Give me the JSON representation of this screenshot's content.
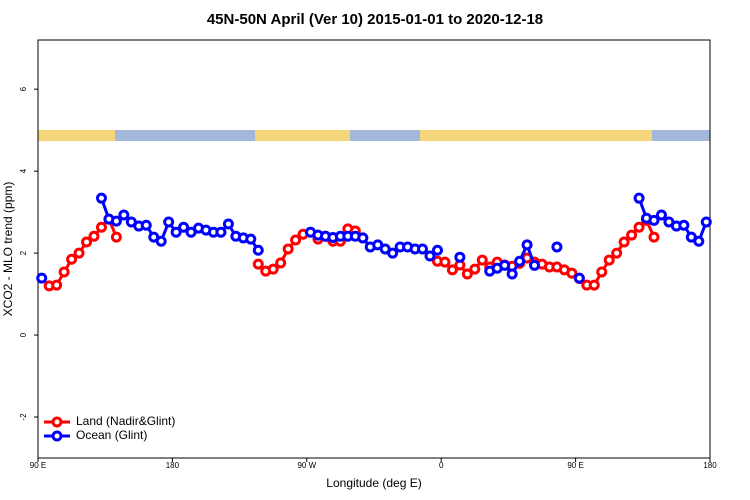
{
  "chart_data": {
    "type": "line",
    "title": "45N-50N April (Ver 10)   2015-01-01 to 2020-12-18",
    "x_label": "Longitude (deg E)",
    "y_label": "XCO2 - MLO trend (ppm)",
    "xlim": [
      90,
      540
    ],
    "xticks": [
      {
        "value": 90,
        "label": "90 E"
      },
      180,
      {
        "value": 270,
        "label": "90 W"
      },
      {
        "value": 360,
        "label": "0"
      },
      {
        "value": 450,
        "label": "90 E"
      },
      {
        "value": 540,
        "label": "180"
      }
    ],
    "ylim": [
      -3,
      7.2
    ],
    "yticks": [
      -2,
      0,
      2,
      4,
      6
    ],
    "legend": "bottom-left",
    "series": [
      {
        "name": "Land (Nadir&Glint)",
        "color": "#ff0000",
        "x": [
          97.5,
          102.5,
          107.5,
          112.5,
          117.5,
          122.5,
          127.5,
          132.5,
          137.5,
          142.5,
          147.5,
          237.5,
          242.5,
          247.5,
          252.5,
          257.5,
          262.5,
          267.5,
          272.5,
          277.5,
          282.5,
          287.5,
          292.5,
          297.5,
          302.5,
          307.5,
          312.5,
          357.5,
          362.5,
          367.5,
          372.5,
          377.5,
          382.5,
          387.5,
          392.5,
          397.5,
          402.5,
          407.5,
          412.5,
          417.5,
          422.5,
          427.5,
          432.5,
          437.5,
          442.5,
          447.5,
          452.5,
          457.5,
          462.5,
          467.5,
          472.5,
          477.5,
          482.5,
          487.5,
          492.5,
          497.5,
          502.5
        ],
        "values": [
          1.2,
          1.22,
          1.54,
          1.85,
          2.0,
          2.27,
          2.41,
          2.63,
          2.83,
          2.39,
          null,
          1.73,
          1.56,
          1.61,
          1.76,
          2.1,
          2.32,
          2.46,
          null,
          2.34,
          2.41,
          2.29,
          2.29,
          2.59,
          2.54,
          2.37,
          null,
          1.8,
          1.78,
          1.59,
          1.71,
          1.49,
          1.61,
          1.83,
          1.66,
          1.78,
          1.71,
          1.68,
          1.75,
          1.88,
          1.78,
          1.73,
          1.66,
          1.66,
          1.59,
          1.51,
          1.38,
          1.22,
          1.22,
          1.54,
          1.83,
          2.0,
          2.27,
          2.44,
          2.63,
          2.8,
          2.39
        ]
      },
      {
        "name": "Ocean (Glint)",
        "color": "#0000ff",
        "x": [
          92.5,
          97.5,
          132.5,
          137.5,
          142.5,
          147.5,
          152.5,
          157.5,
          162.5,
          167.5,
          172.5,
          177.5,
          182.5,
          187.5,
          192.5,
          197.5,
          202.5,
          207.5,
          212.5,
          217.5,
          222.5,
          227.5,
          232.5,
          237.5,
          242.5,
          272.5,
          277.5,
          282.5,
          287.5,
          292.5,
          297.5,
          302.5,
          307.5,
          312.5,
          317.5,
          322.5,
          327.5,
          332.5,
          337.5,
          342.5,
          347.5,
          352.5,
          357.5,
          362.5,
          372.5,
          377.5,
          392.5,
          397.5,
          402.5,
          407.5,
          412.5,
          417.5,
          422.5,
          427.5,
          437.5,
          442.5,
          452.5,
          457.5,
          492.5,
          497.5,
          502.5,
          507.5,
          512.5,
          517.5,
          522.5,
          527.5,
          532.5,
          537.5
        ],
        "values": [
          1.39,
          null,
          3.34,
          2.83,
          2.78,
          2.93,
          2.76,
          2.66,
          2.68,
          2.39,
          2.29,
          2.76,
          2.51,
          2.63,
          2.51,
          2.61,
          2.56,
          2.51,
          2.51,
          2.71,
          2.41,
          2.37,
          2.34,
          2.07,
          null,
          2.51,
          2.44,
          2.41,
          2.38,
          2.41,
          2.41,
          2.41,
          2.37,
          2.15,
          2.2,
          2.1,
          2.0,
          2.15,
          2.15,
          2.1,
          2.1,
          1.93,
          2.07,
          null,
          1.9,
          null,
          1.56,
          1.63,
          1.7,
          1.49,
          1.8,
          2.2,
          1.7,
          null,
          2.15,
          null,
          1.39,
          null,
          3.34,
          2.85,
          2.8,
          2.93,
          2.76,
          2.66,
          2.68,
          2.39,
          2.29,
          2.76
        ]
      }
    ]
  }
}
